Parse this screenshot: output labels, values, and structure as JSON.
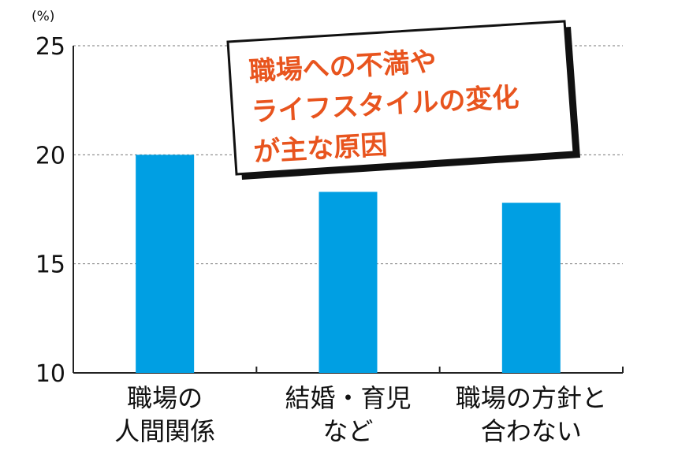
{
  "chart_data": {
    "type": "bar",
    "unit_label": "(%)",
    "categories": [
      [
        "職場の",
        "人間関係"
      ],
      [
        "結婚・育児",
        "など"
      ],
      [
        "職場の方針と",
        "合わない"
      ]
    ],
    "values": [
      20.0,
      18.3,
      17.8
    ],
    "ylim": [
      10,
      25
    ],
    "yticks": [
      10,
      15,
      20,
      25
    ],
    "grid": true,
    "bar_color": "#009fe3",
    "callout": {
      "lines": [
        "職場への不満や",
        "ライフスタイルの変化",
        "が主な原因"
      ],
      "text_color": "#e8541e"
    }
  }
}
